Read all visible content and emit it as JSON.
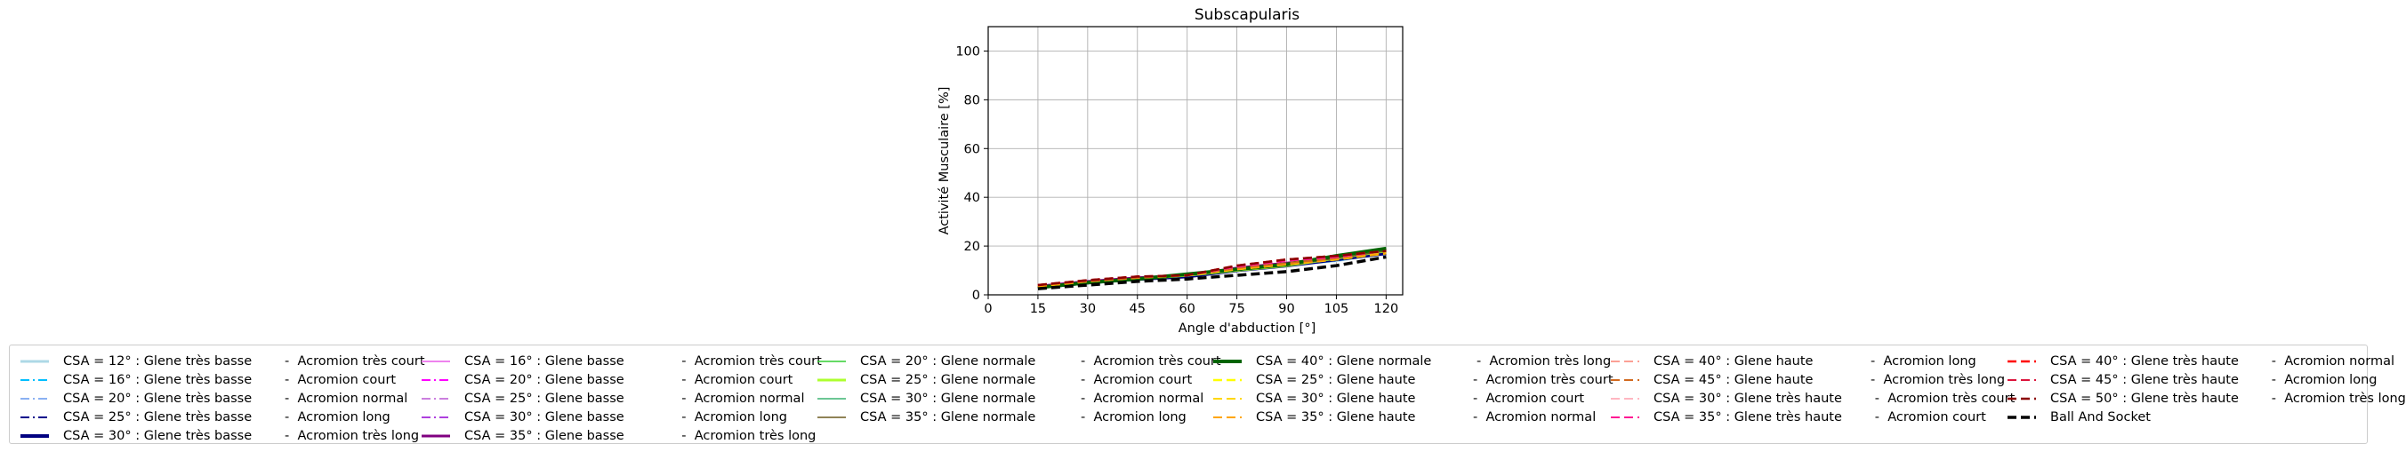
{
  "chart_data": {
    "type": "line",
    "title": "Subscapularis",
    "xlabel": "Angle d'abduction [°]",
    "ylabel": "Activité Musculaire [%]",
    "xlim": [
      0,
      125
    ],
    "ylim": [
      0,
      110
    ],
    "xticks": [
      "0",
      "15",
      "30",
      "45",
      "60",
      "75",
      "90",
      "105",
      "120"
    ],
    "yticks": [
      "0",
      "20",
      "40",
      "60",
      "80",
      "100"
    ],
    "grid": true,
    "legend_position": "bottom",
    "x": [
      15,
      30,
      45,
      60,
      75,
      90,
      105,
      120
    ],
    "series": [
      {
        "name": "CSA = 12° : Glene très basse        -  Acromion très court",
        "color": "#add8e6",
        "dash": "solid",
        "width": 3,
        "values": [
          3,
          5,
          6.5,
          7.5,
          10,
          12,
          14,
          17
        ]
      },
      {
        "name": "CSA = 16° : Glene très basse        -  Acromion court",
        "color": "#00bfff",
        "dash": "dashdot",
        "width": 2,
        "values": [
          3,
          5,
          6.5,
          7.5,
          10,
          12,
          14,
          17
        ]
      },
      {
        "name": "CSA = 20° : Glene très basse        -  Acromion normal",
        "color": "#6495ed",
        "dash": "dashdot",
        "width": 1.5,
        "values": [
          3,
          5,
          6.5,
          7.5,
          10,
          12,
          14,
          17
        ]
      },
      {
        "name": "CSA = 25° : Glene très basse        -  Acromion long",
        "color": "#00008b",
        "dash": "dashdot",
        "width": 2,
        "values": [
          3,
          5,
          6.5,
          7.5,
          10,
          12,
          14.5,
          17
        ]
      },
      {
        "name": "CSA = 30° : Glene très basse        -  Acromion très long",
        "color": "#000080",
        "dash": "solid",
        "width": 4,
        "values": [
          3,
          5,
          6.5,
          7.5,
          10,
          12,
          14.5,
          17
        ]
      },
      {
        "name": "CSA = 16° : Glene basse              -  Acromion très court",
        "color": "#ee82ee",
        "dash": "solid",
        "width": 2,
        "values": [
          3.5,
          5.5,
          7,
          8,
          11,
          13,
          15,
          18
        ]
      },
      {
        "name": "CSA = 20° : Glene basse              -  Acromion court",
        "color": "#ff00ff",
        "dash": "dashdot",
        "width": 2,
        "values": [
          3.5,
          5.5,
          7,
          8,
          11,
          13,
          15,
          18
        ]
      },
      {
        "name": "CSA = 25° : Glene basse              -  Acromion normal",
        "color": "#ba55d3",
        "dash": "dashdot",
        "width": 1.5,
        "values": [
          3.5,
          5.5,
          7,
          8,
          11,
          13,
          15,
          18
        ]
      },
      {
        "name": "CSA = 30° : Glene basse              -  Acromion long",
        "color": "#9400d3",
        "dash": "dashdot",
        "width": 1.5,
        "values": [
          3.5,
          5.5,
          7,
          8,
          11,
          13,
          15,
          18
        ]
      },
      {
        "name": "CSA = 35° : Glene basse              -  Acromion très long",
        "color": "#800080",
        "dash": "solid",
        "width": 3,
        "values": [
          3.5,
          5.5,
          7,
          8,
          11,
          13,
          15,
          18
        ]
      },
      {
        "name": "CSA = 20° : Glene normale           -  Acromion très court",
        "color": "#32cd32",
        "dash": "solid",
        "width": 1.5,
        "values": [
          3,
          5,
          6.5,
          8,
          10,
          12,
          15,
          18
        ]
      },
      {
        "name": "CSA = 25° : Glene normale           -  Acromion court",
        "color": "#adff2f",
        "dash": "solid",
        "width": 3,
        "values": [
          3,
          5,
          6.5,
          8,
          10,
          12,
          15,
          18
        ]
      },
      {
        "name": "CSA = 30° : Glene normale           -  Acromion normal",
        "color": "#3cb371",
        "dash": "solid",
        "width": 1.5,
        "values": [
          3,
          5,
          6.5,
          8,
          10,
          12,
          15,
          18
        ]
      },
      {
        "name": "CSA = 35° : Glene normale           -  Acromion long",
        "color": "#6b5a1e",
        "dash": "solid",
        "width": 1.5,
        "values": [
          3,
          5,
          6.5,
          8,
          10,
          12,
          15,
          18
        ]
      },
      {
        "name": "CSA = 40° : Glene normale           -  Acromion très long",
        "color": "#006400",
        "dash": "solid",
        "width": 4,
        "values": [
          3,
          5,
          6.5,
          8.5,
          10.5,
          12.5,
          16,
          19
        ]
      },
      {
        "name": "CSA = 25° : Glene haute              -  Acromion très court",
        "color": "#ffff00",
        "dash": "dashed",
        "width": 2.5,
        "values": [
          3.5,
          5.5,
          7,
          8,
          10.5,
          12.5,
          14.5,
          17
        ]
      },
      {
        "name": "CSA = 30° : Glene haute              -  Acromion court",
        "color": "#ffd700",
        "dash": "dashed",
        "width": 2,
        "values": [
          3.5,
          5.5,
          7,
          8,
          10.5,
          12.5,
          14.5,
          17
        ]
      },
      {
        "name": "CSA = 35° : Glene haute              -  Acromion normal",
        "color": "#ffa500",
        "dash": "dashed",
        "width": 2,
        "values": [
          3.5,
          5.5,
          7,
          8,
          10.5,
          12.5,
          14.5,
          17
        ]
      },
      {
        "name": "CSA = 40° : Glene haute              -  Acromion long",
        "color": "#fa8072",
        "dash": "dashed",
        "width": 1.5,
        "values": [
          4,
          5.5,
          7,
          8,
          11,
          13,
          15,
          18
        ]
      },
      {
        "name": "CSA = 45° : Glene haute              -  Acromion très long",
        "color": "#d2691e",
        "dash": "dashed",
        "width": 2,
        "values": [
          4,
          5.5,
          7,
          8,
          11,
          13,
          15,
          18
        ]
      },
      {
        "name": "CSA = 30° : Glene très haute        -  Acromion très court",
        "color": "#ffb6c1",
        "dash": "dashed",
        "width": 2,
        "values": [
          4,
          6,
          7.5,
          8,
          11.5,
          14,
          15.5,
          18
        ]
      },
      {
        "name": "CSA = 35° : Glene très haute        -  Acromion court",
        "color": "#ff1493",
        "dash": "dashed",
        "width": 2,
        "values": [
          4,
          6,
          7.5,
          8,
          11.5,
          14,
          15.5,
          18
        ]
      },
      {
        "name": "CSA = 40° : Glene très haute        -  Acromion normal",
        "color": "#ff0000",
        "dash": "dashed",
        "width": 2.5,
        "values": [
          4,
          6,
          7.5,
          8,
          12,
          14.5,
          16,
          18
        ]
      },
      {
        "name": "CSA = 45° : Glene très haute        -  Acromion long",
        "color": "#dc143c",
        "dash": "dashed",
        "width": 2,
        "values": [
          4,
          6,
          7.5,
          8,
          12,
          14.5,
          16,
          18
        ]
      },
      {
        "name": "CSA = 50° : Glene très haute        -  Acromion très long",
        "color": "#8b0000",
        "dash": "dashed",
        "width": 2.5,
        "values": [
          4,
          6,
          7.5,
          8,
          12,
          14.5,
          16,
          18
        ]
      },
      {
        "name": "Ball And Socket",
        "color": "#000000",
        "dash": "dashed",
        "width": 3.5,
        "values": [
          2.5,
          4,
          5.5,
          6.5,
          8,
          9.5,
          12,
          15.5
        ]
      }
    ]
  }
}
